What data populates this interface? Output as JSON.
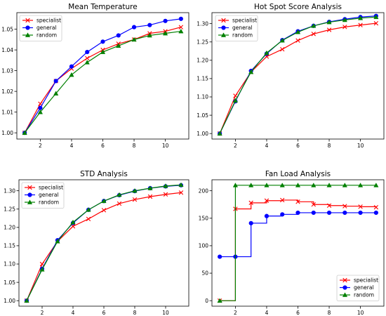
{
  "chart_data": [
    {
      "type": "line",
      "title": "Mean Temperature",
      "xlabel": "",
      "ylabel": "",
      "xlim": [
        0.5,
        11.5
      ],
      "ylim": [
        0.997,
        1.058
      ],
      "xticks": [
        2,
        4,
        6,
        8,
        10
      ],
      "yticks": [
        1.0,
        1.01,
        1.02,
        1.03,
        1.04,
        1.05
      ],
      "yticklabels": [
        "1.00",
        "1.01",
        "1.02",
        "1.03",
        "1.04",
        "1.05"
      ],
      "grid": false,
      "legend": "top-left",
      "x": [
        1,
        2,
        3,
        4,
        5,
        6,
        7,
        8,
        9,
        10,
        11
      ],
      "series": [
        {
          "name": "specialist",
          "color": "#ff0000",
          "marker": "x",
          "step": false,
          "values": [
            1.0,
            1.014,
            1.025,
            1.031,
            1.036,
            1.04,
            1.043,
            1.045,
            1.048,
            1.049,
            1.051
          ]
        },
        {
          "name": "general",
          "color": "#0000ff",
          "marker": "circle",
          "step": false,
          "values": [
            1.0,
            1.012,
            1.025,
            1.032,
            1.039,
            1.044,
            1.047,
            1.051,
            1.052,
            1.054,
            1.055
          ]
        },
        {
          "name": "random",
          "color": "#008000",
          "marker": "triangle",
          "step": false,
          "values": [
            1.0,
            1.01,
            1.019,
            1.028,
            1.034,
            1.039,
            1.042,
            1.045,
            1.047,
            1.048,
            1.049
          ]
        }
      ]
    },
    {
      "type": "line",
      "title": "Hot Spot Score Analysis",
      "xlabel": "",
      "ylabel": "",
      "xlim": [
        0.5,
        11.5
      ],
      "ylim": [
        0.985,
        1.33
      ],
      "xticks": [
        2,
        4,
        6,
        8,
        10
      ],
      "yticks": [
        1.0,
        1.05,
        1.1,
        1.15,
        1.2,
        1.25,
        1.3
      ],
      "yticklabels": [
        "1.00",
        "1.05",
        "1.10",
        "1.15",
        "1.20",
        "1.25",
        "1.30"
      ],
      "grid": false,
      "legend": "top-left",
      "x": [
        1,
        2,
        3,
        4,
        5,
        6,
        7,
        8,
        9,
        10,
        11
      ],
      "series": [
        {
          "name": "specialist",
          "color": "#ff0000",
          "marker": "x",
          "step": false,
          "values": [
            1.0,
            1.103,
            1.168,
            1.21,
            1.23,
            1.254,
            1.272,
            1.283,
            1.291,
            1.296,
            1.301
          ]
        },
        {
          "name": "general",
          "color": "#0000ff",
          "marker": "circle",
          "step": false,
          "values": [
            1.0,
            1.088,
            1.171,
            1.218,
            1.255,
            1.279,
            1.294,
            1.305,
            1.312,
            1.318,
            1.321
          ]
        },
        {
          "name": "random",
          "color": "#008000",
          "marker": "triangle",
          "step": false,
          "values": [
            1.0,
            1.09,
            1.168,
            1.22,
            1.254,
            1.277,
            1.294,
            1.304,
            1.31,
            1.315,
            1.318
          ]
        }
      ]
    },
    {
      "type": "line",
      "title": "STD Analysis",
      "xlabel": "",
      "ylabel": "",
      "xlim": [
        0.5,
        11.5
      ],
      "ylim": [
        0.985,
        1.33
      ],
      "xticks": [
        2,
        4,
        6,
        8,
        10
      ],
      "yticks": [
        1.0,
        1.05,
        1.1,
        1.15,
        1.2,
        1.25,
        1.3
      ],
      "yticklabels": [
        "1.00",
        "1.05",
        "1.10",
        "1.15",
        "1.20",
        "1.25",
        "1.30"
      ],
      "grid": false,
      "legend": "top-left",
      "x": [
        1,
        2,
        3,
        4,
        5,
        6,
        7,
        8,
        9,
        10,
        11
      ],
      "series": [
        {
          "name": "specialist",
          "color": "#ff0000",
          "marker": "x",
          "step": false,
          "values": [
            1.0,
            1.1,
            1.162,
            1.203,
            1.223,
            1.247,
            1.265,
            1.276,
            1.284,
            1.29,
            1.295
          ]
        },
        {
          "name": "general",
          "color": "#0000ff",
          "marker": "circle",
          "step": false,
          "values": [
            1.0,
            1.087,
            1.165,
            1.212,
            1.248,
            1.272,
            1.288,
            1.299,
            1.307,
            1.312,
            1.315
          ]
        },
        {
          "name": "random",
          "color": "#008000",
          "marker": "triangle",
          "step": false,
          "values": [
            1.0,
            1.085,
            1.162,
            1.214,
            1.248,
            1.272,
            1.289,
            1.3,
            1.307,
            1.313,
            1.316
          ]
        }
      ]
    },
    {
      "type": "line",
      "title": "Fan Load Analysis",
      "xlabel": "",
      "ylabel": "",
      "xlim": [
        0.5,
        11.5
      ],
      "ylim": [
        -10,
        220
      ],
      "xticks": [
        2,
        4,
        6,
        8,
        10
      ],
      "yticks": [
        0,
        50,
        100,
        150,
        200
      ],
      "yticklabels": [
        "0",
        "50",
        "100",
        "150",
        "200"
      ],
      "grid": false,
      "legend": "bottom-right",
      "x": [
        1,
        2,
        3,
        4,
        5,
        6,
        7,
        8,
        9,
        10,
        11
      ],
      "series": [
        {
          "name": "specialist",
          "color": "#ff0000",
          "marker": "x",
          "step": true,
          "values": [
            0,
            167,
            178,
            182,
            183,
            180,
            175,
            173,
            172,
            171,
            170
          ]
        },
        {
          "name": "general",
          "color": "#0000ff",
          "marker": "circle",
          "step": true,
          "values": [
            80,
            80,
            141,
            154,
            157,
            160,
            160,
            160,
            160,
            160,
            160
          ]
        },
        {
          "name": "random",
          "color": "#008000",
          "marker": "triangle",
          "step": true,
          "values": [
            0,
            210,
            210,
            210,
            210,
            210,
            210,
            210,
            210,
            210,
            210
          ]
        }
      ]
    }
  ]
}
